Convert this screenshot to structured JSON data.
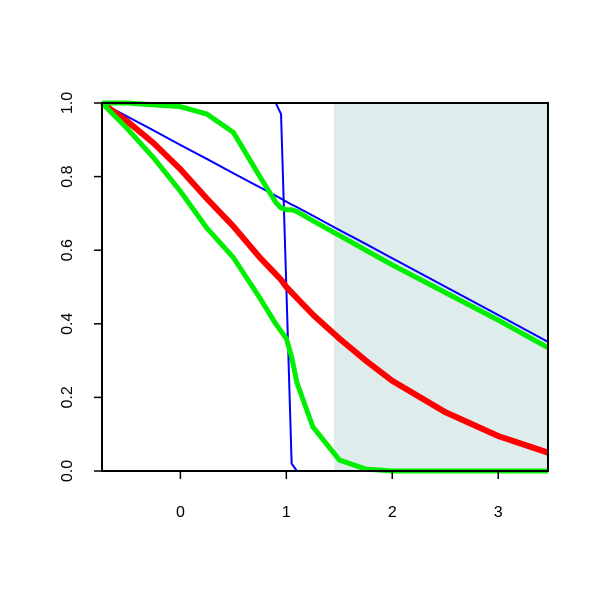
{
  "chart_data": {
    "type": "line",
    "x": [
      -0.74,
      -0.5,
      -0.25,
      0,
      0.25,
      0.5,
      0.75,
      0.9,
      0.95,
      1,
      1.05,
      1.1,
      1.25,
      1.5,
      1.75,
      2,
      2.5,
      3,
      3.47
    ],
    "xlim": [
      -0.74,
      3.47
    ],
    "xticks": [
      0,
      1,
      2,
      3
    ],
    "ylim": [
      0,
      1
    ],
    "yticks": [
      {
        "value": 0,
        "label": "0.0"
      },
      0.2,
      0.4,
      0.6,
      0.8,
      {
        "value": 1,
        "label": "1.0"
      }
    ],
    "shade_xlim": [
      1.45,
      3.47
    ],
    "shade_color": "#dfecec",
    "series": [
      {
        "color": "#0000ff",
        "width": 2,
        "values": [
          1,
          0.963,
          0.925,
          0.886,
          0.848,
          0.809,
          0.771,
          0.748,
          0.74,
          0.732,
          0.724,
          0.717,
          0.694,
          0.655,
          0.617,
          0.578,
          0.501,
          0.424,
          0.351
        ]
      },
      {
        "color": "#0000ff",
        "width": 2,
        "values": [
          1,
          1,
          1,
          1,
          1,
          1,
          1,
          1,
          0.97,
          0.5,
          0.02,
          0,
          0,
          0,
          0,
          0,
          0,
          0,
          0
        ]
      },
      {
        "color": "#ff0000",
        "width": 6,
        "values": [
          1,
          0.95,
          0.89,
          0.82,
          0.74,
          0.665,
          0.58,
          0.535,
          0.52,
          0.5,
          0.485,
          0.47,
          0.425,
          0.36,
          0.3,
          0.245,
          0.16,
          0.095,
          0.05
        ]
      },
      {
        "color": "#00ee00",
        "width": 5,
        "values": [
          1,
          1,
          0.995,
          0.99,
          0.97,
          0.92,
          0.8,
          0.73,
          0.715,
          0.71,
          0.71,
          0.705,
          0.68,
          0.64,
          0.6,
          0.56,
          0.485,
          0.41,
          0.335
        ]
      },
      {
        "color": "#00ee00",
        "width": 5,
        "values": [
          1,
          0.93,
          0.85,
          0.76,
          0.66,
          0.58,
          0.47,
          0.4,
          0.38,
          0.36,
          0.31,
          0.24,
          0.12,
          0.03,
          0.005,
          0,
          0,
          0,
          0
        ]
      }
    ]
  }
}
